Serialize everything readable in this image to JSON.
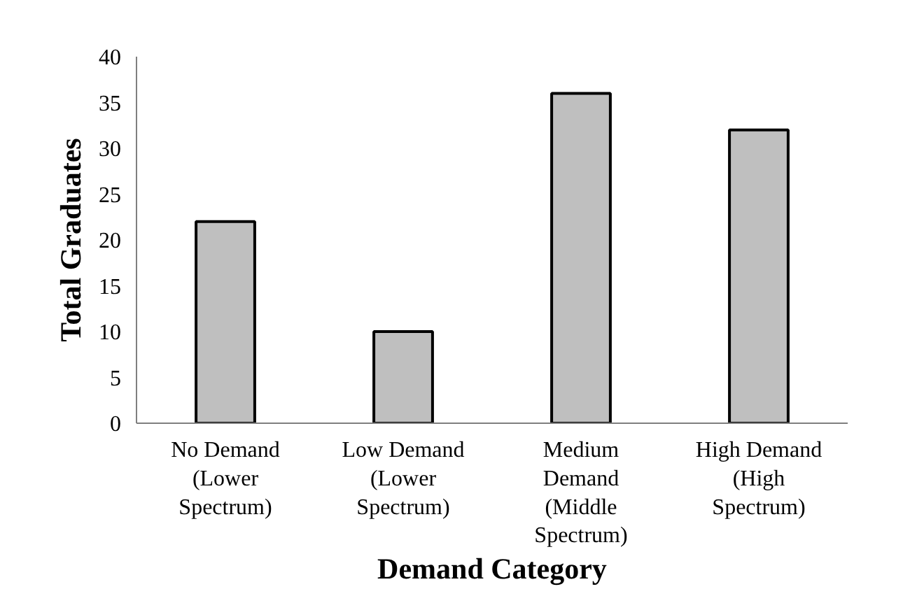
{
  "chart_data": {
    "type": "bar",
    "xlabel": "Demand Category",
    "ylabel": "Total Graduates",
    "categories": [
      "No Demand\n(Lower\nSpectrum)",
      "Low Demand\n(Lower\nSpectrum)",
      "Medium\nDemand\n(Middle\nSpectrum)",
      "High Demand\n(High\nSpectrum)"
    ],
    "values": [
      22,
      10,
      36,
      32
    ],
    "color": "#bfbfbf",
    "ylim": [
      0,
      40
    ],
    "yticks": [
      0,
      5,
      10,
      15,
      20,
      25,
      30,
      35,
      40
    ],
    "grid": false
  }
}
